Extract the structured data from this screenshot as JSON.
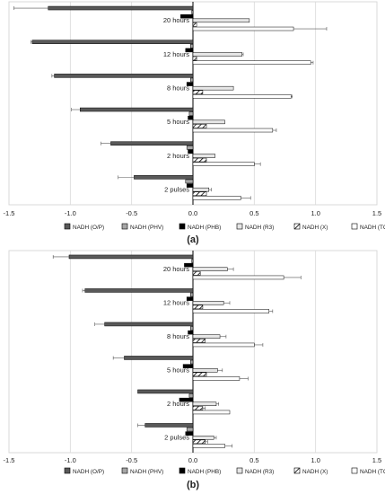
{
  "legend": [
    {
      "name": "NADH (O/P)",
      "fill": "#595959",
      "pattern": "none"
    },
    {
      "name": "NADH (PHV)",
      "fill": "#a6a6a6",
      "pattern": "none"
    },
    {
      "name": "NADH (PHB)",
      "fill": "#000000",
      "pattern": "none"
    },
    {
      "name": "NADH (R3)",
      "fill": "#e6e6e6",
      "pattern": "none"
    },
    {
      "name": "NADH (X)",
      "fill": "#ffffff",
      "pattern": "hatch"
    },
    {
      "name": "NADH (TCA)",
      "fill": "#ffffff",
      "pattern": "none"
    }
  ],
  "chart_data": [
    {
      "type": "bar",
      "orientation": "horizontal",
      "panel_label": "(a)",
      "categories": [
        "20 hours",
        "12 hours",
        "8 hours",
        "5 hours",
        "2 hours",
        "2 pulses"
      ],
      "xlim": [
        -1.5,
        1.5
      ],
      "x_ticks": [
        "-1.5",
        "-1.0",
        "-0.5",
        "0.0",
        "0.5",
        "1.0",
        "1.5"
      ],
      "grid": true,
      "legend_position": "bottom",
      "series": [
        {
          "name": "NADH (O/P)",
          "values": [
            -1.18,
            -1.31,
            -1.13,
            -0.92,
            -0.67,
            -0.48
          ],
          "errors": [
            0.28,
            0.01,
            0.02,
            0.07,
            0.08,
            0.13
          ]
        },
        {
          "name": "NADH (PHV)",
          "values": [
            -0.01,
            -0.02,
            -0.02,
            -0.03,
            -0.05,
            -0.06
          ],
          "errors": [
            0,
            0,
            0,
            0,
            0,
            0
          ]
        },
        {
          "name": "NADH (PHB)",
          "values": [
            -0.1,
            -0.06,
            -0.05,
            -0.04,
            -0.04,
            -0.05
          ],
          "errors": [
            0,
            0,
            0,
            0,
            0,
            0
          ]
        },
        {
          "name": "NADH (R3)",
          "values": [
            0.46,
            0.4,
            0.33,
            0.26,
            0.18,
            0.13
          ],
          "errors": [
            0,
            0.01,
            0,
            0,
            0,
            0.02
          ]
        },
        {
          "name": "NADH (X)",
          "values": [
            0.03,
            0.03,
            0.08,
            0.11,
            0.11,
            0.11
          ],
          "errors": [
            0,
            0,
            0,
            0,
            0,
            0
          ]
        },
        {
          "name": "NADH (TCA)",
          "values": [
            0.82,
            0.96,
            0.8,
            0.65,
            0.5,
            0.39
          ],
          "errors": [
            0.27,
            0.02,
            0.01,
            0.03,
            0.05,
            0.08
          ]
        }
      ]
    },
    {
      "type": "bar",
      "orientation": "horizontal",
      "panel_label": "(b)",
      "categories": [
        "20 hours",
        "12 hours",
        "8 hours",
        "5 hours",
        "2 hours",
        "2 pulses"
      ],
      "xlim": [
        -1.5,
        1.5
      ],
      "x_ticks": [
        "-1.5",
        "-1.0",
        "-0.5",
        "0.0",
        "0.5",
        "1.0",
        "1.5"
      ],
      "grid": true,
      "legend_position": "bottom",
      "series": [
        {
          "name": "NADH (O/P)",
          "values": [
            -1.01,
            -0.88,
            -0.72,
            -0.56,
            -0.45,
            -0.39
          ],
          "errors": [
            0.13,
            0.02,
            0.08,
            0.09,
            0,
            0.06
          ]
        },
        {
          "name": "NADH (PHV)",
          "values": [
            -0.01,
            -0.02,
            -0.02,
            -0.02,
            -0.03,
            -0.05
          ],
          "errors": [
            0,
            0,
            0,
            0,
            0,
            0
          ]
        },
        {
          "name": "NADH (PHB)",
          "values": [
            -0.07,
            -0.05,
            -0.04,
            -0.08,
            -0.11,
            -0.06
          ],
          "errors": [
            0,
            0,
            0,
            0,
            0,
            0
          ]
        },
        {
          "name": "NADH (R3)",
          "values": [
            0.28,
            0.25,
            0.22,
            0.2,
            0.19,
            0.17
          ],
          "errors": [
            0.05,
            0.05,
            0.05,
            0.04,
            0.02,
            0.02
          ]
        },
        {
          "name": "NADH (X)",
          "values": [
            0.06,
            0.08,
            0.1,
            0.11,
            0.08,
            0.1
          ],
          "errors": [
            0,
            0,
            0,
            0,
            0.02,
            0.02
          ]
        },
        {
          "name": "NADH (TCA)",
          "values": [
            0.74,
            0.62,
            0.5,
            0.38,
            0.3,
            0.26
          ],
          "errors": [
            0.14,
            0.03,
            0.07,
            0.07,
            0,
            0.06
          ]
        }
      ]
    }
  ]
}
